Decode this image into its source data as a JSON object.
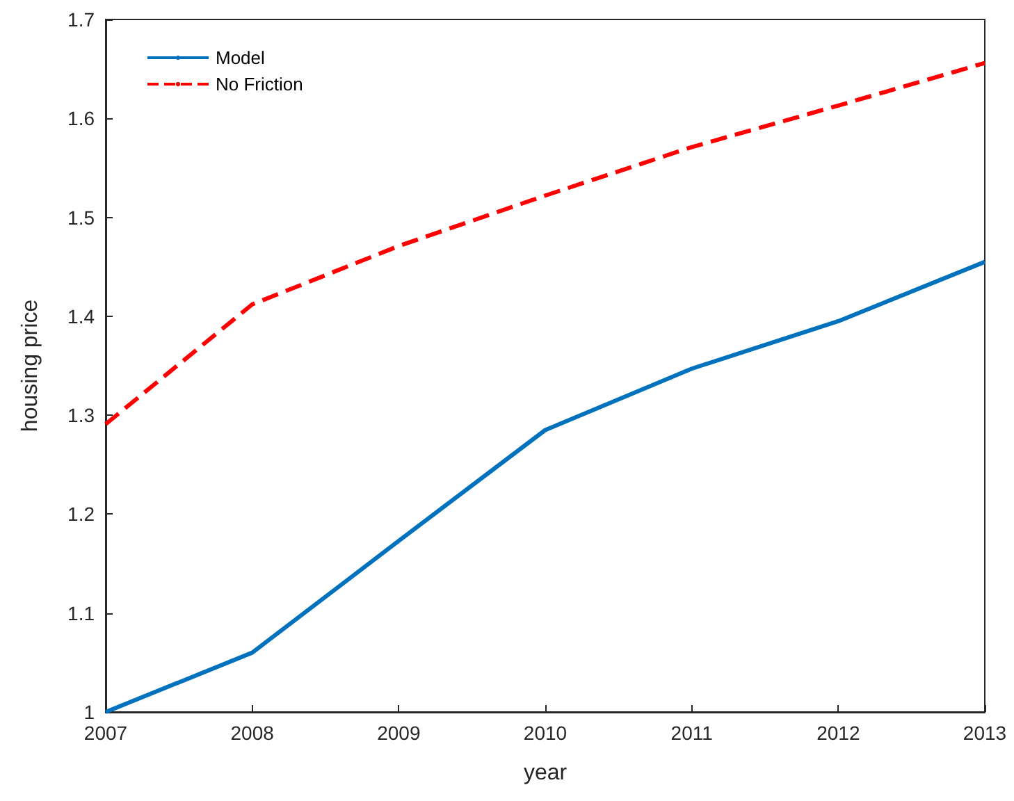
{
  "chart_data": {
    "type": "line",
    "xlabel": "year",
    "ylabel": "housing price",
    "x": [
      2007,
      2008,
      2009,
      2010,
      2011,
      2012,
      2013
    ],
    "series": [
      {
        "name": "Model",
        "color": "#0072bd",
        "line_style": "solid",
        "values": [
          1.0,
          1.06,
          1.173,
          1.285,
          1.347,
          1.395,
          1.455
        ]
      },
      {
        "name": "No Friction",
        "color": "#ff0000",
        "line_style": "dashed",
        "values": [
          1.291,
          1.412,
          1.471,
          1.522,
          1.571,
          1.613,
          1.656
        ]
      }
    ],
    "xlim": [
      2007,
      2013
    ],
    "xticks": [
      2007,
      2008,
      2009,
      2010,
      2011,
      2012,
      2013
    ],
    "ylim": [
      1,
      1.7
    ],
    "yticks": [
      1,
      1.1,
      1.2,
      1.3,
      1.4,
      1.5,
      1.6,
      1.7
    ],
    "grid": false,
    "legend": "top left"
  }
}
